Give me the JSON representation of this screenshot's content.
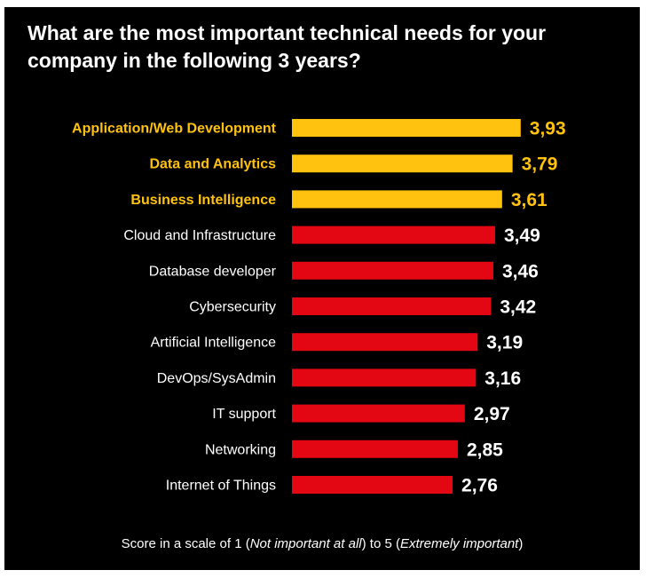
{
  "title": "What are the most important technical needs for your company in the following 3 years?",
  "footnote": {
    "prefix": "Score in a scale of 1 (",
    "low": "Not important at all",
    "middle": ") to 5 (",
    "high": "Extremely important",
    "suffix": ")"
  },
  "colors": {
    "highlight": "#FFC20E",
    "regular": "#E30613",
    "background": "#000000",
    "text": "#FFFFFF"
  },
  "chart_data": {
    "type": "bar",
    "orientation": "horizontal",
    "title": "What are the most important technical needs for your company in the following 3 years?",
    "xlabel": "",
    "ylabel": "",
    "xlim": [
      0,
      5
    ],
    "grid": false,
    "categories": [
      "Application/Web Development",
      "Data and Analytics",
      "Business Intelligence",
      "Cloud and Infrastructure",
      "Database developer",
      "Cybersecurity",
      "Artificial Intelligence",
      "DevOps/SysAdmin",
      "IT support",
      "Networking",
      "Internet  of Things"
    ],
    "values": [
      3.93,
      3.79,
      3.61,
      3.49,
      3.46,
      3.42,
      3.19,
      3.16,
      2.97,
      2.85,
      2.76
    ],
    "value_labels": [
      "3,93",
      "3,79",
      "3,61",
      "3,49",
      "3,46",
      "3,42",
      "3,19",
      "3,16",
      "2,97",
      "2,85",
      "2,76"
    ],
    "highlighted": [
      true,
      true,
      true,
      false,
      false,
      false,
      false,
      false,
      false,
      false,
      false
    ]
  }
}
